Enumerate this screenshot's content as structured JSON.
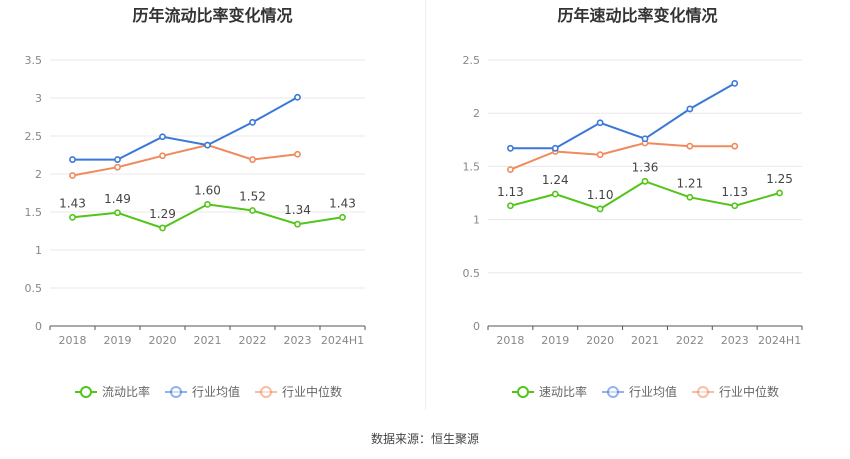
{
  "colors": {
    "ratio": "#52c41a",
    "industry_avg": "#3a78d8",
    "industry_median": "#f08a5d",
    "grid": "#e8e8e8",
    "axis": "#555555"
  },
  "source_text": "数据来源：恒生聚源",
  "chart_data": [
    {
      "type": "line",
      "title": "历年流动比率变化情况",
      "categories": [
        "2018",
        "2019",
        "2020",
        "2021",
        "2022",
        "2023",
        "2024H1"
      ],
      "ylim": [
        0,
        3.5
      ],
      "yticks": [
        "0",
        "0.5",
        "1",
        "1.5",
        "2",
        "2.5",
        "3",
        "3.5"
      ],
      "series": [
        {
          "name": "流动比率",
          "key": "ratio",
          "values": [
            1.43,
            1.49,
            1.29,
            1.6,
            1.52,
            1.34,
            1.43
          ],
          "labels": [
            "1.43",
            "1.49",
            "1.29",
            "1.60",
            "1.52",
            "1.34",
            "1.43"
          ]
        },
        {
          "name": "行业均值",
          "key": "industry_avg",
          "values": [
            2.19,
            2.19,
            2.49,
            2.38,
            2.68,
            3.01,
            null
          ]
        },
        {
          "name": "行业中位数",
          "key": "industry_median",
          "values": [
            1.98,
            2.09,
            2.24,
            2.38,
            2.19,
            2.26,
            null
          ]
        }
      ]
    },
    {
      "type": "line",
      "title": "历年速动比率变化情况",
      "categories": [
        "2018",
        "2019",
        "2020",
        "2021",
        "2022",
        "2023",
        "2024H1"
      ],
      "ylim": [
        0,
        2.5
      ],
      "yticks": [
        "0",
        "0.5",
        "1",
        "1.5",
        "2",
        "2.5"
      ],
      "series": [
        {
          "name": "速动比率",
          "key": "ratio",
          "values": [
            1.13,
            1.24,
            1.1,
            1.36,
            1.21,
            1.13,
            1.25
          ],
          "labels": [
            "1.13",
            "1.24",
            "1.10",
            "1.36",
            "1.21",
            "1.13",
            "1.25"
          ]
        },
        {
          "name": "行业均值",
          "key": "industry_avg",
          "values": [
            1.67,
            1.67,
            1.91,
            1.76,
            2.04,
            2.28,
            null
          ]
        },
        {
          "name": "行业中位数",
          "key": "industry_median",
          "values": [
            1.47,
            1.64,
            1.61,
            1.72,
            1.69,
            1.69,
            null
          ]
        }
      ]
    }
  ]
}
